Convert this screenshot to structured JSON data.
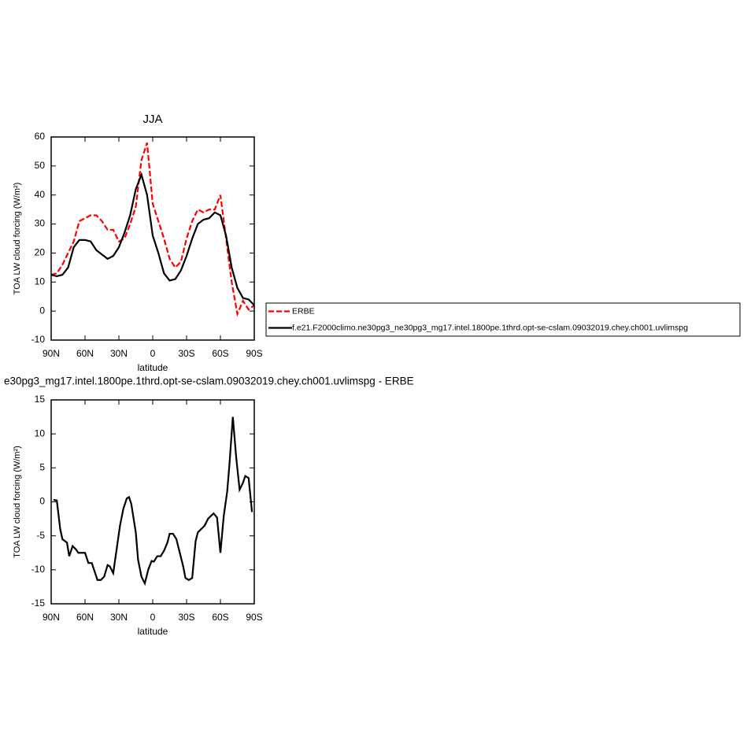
{
  "chart_data": [
    {
      "type": "line",
      "title": "JJA",
      "xlabel": "latitude",
      "ylabel": "TOA LW cloud forcing (W/m²)",
      "x": [
        90,
        85,
        80,
        75,
        70,
        65,
        60,
        55,
        50,
        45,
        40,
        35,
        30,
        25,
        20,
        15,
        10,
        5,
        0,
        -5,
        -10,
        -15,
        -20,
        -25,
        -30,
        -35,
        -40,
        -45,
        -50,
        -55,
        -60,
        -65,
        -70,
        -75,
        -80,
        -85,
        -90
      ],
      "series": [
        {
          "name": "ERBE",
          "color": "#ff0000",
          "linestyle": "dashed",
          "values": [
            12.5,
            13,
            16,
            20,
            24,
            31,
            32,
            33,
            33,
            31,
            28,
            28,
            24,
            25,
            30,
            36,
            52,
            58,
            37,
            31,
            25,
            18,
            15,
            17,
            25,
            31,
            35,
            34,
            35,
            35,
            40,
            25,
            10,
            -1,
            3.5,
            0.5,
            2
          ]
        },
        {
          "name": "f.e21.F2000climo.ne30pg3_ne30pg3_mg17.intel.1800pe.1thrd.opt-se-cslam.09032019.chey.ch001.uvlimspg",
          "color": "#000000",
          "linestyle": "solid",
          "values": [
            12.5,
            12,
            12.5,
            15,
            22,
            24.5,
            24.5,
            24,
            21,
            19.5,
            18,
            19,
            22,
            27,
            33,
            42,
            47,
            40,
            26,
            20,
            13,
            10.5,
            11,
            14,
            19,
            25,
            30,
            31.5,
            32,
            34,
            33,
            26,
            15,
            8,
            4.5,
            4,
            2
          ]
        }
      ],
      "xlim": [
        90,
        -90
      ],
      "xticks": [
        {
          "value": 90,
          "label": "90N"
        },
        {
          "value": 60,
          "label": "60N"
        },
        {
          "value": 30,
          "label": "30N"
        },
        0,
        {
          "value": -30,
          "label": "30S"
        },
        {
          "value": -60,
          "label": "60S"
        },
        {
          "value": -90,
          "label": "90S"
        }
      ],
      "ylim": [
        -10,
        60
      ],
      "yticks": [
        -10,
        0,
        10,
        20,
        30,
        40,
        50,
        60
      ],
      "legend": "right"
    },
    {
      "type": "line",
      "title": "e30pg3_mg17.intel.1800pe.1thrd.opt-se-cslam.09032019.chey.ch001.uvlimspg - ERBE",
      "xlabel": "latitude",
      "ylabel": "TOA LW cloud forcing (W/m²)",
      "x": [
        88,
        85,
        82,
        80,
        76,
        74,
        71,
        68,
        66,
        60,
        57,
        54,
        52,
        49,
        46,
        43,
        40,
        38,
        35,
        32,
        29,
        26,
        23,
        21,
        19,
        15,
        13,
        10,
        7,
        4,
        1,
        -1,
        -4,
        -7,
        -10,
        -13,
        -15,
        -18,
        -21,
        -24,
        -27,
        -29,
        -32,
        -35,
        -38,
        -40,
        -43,
        -46,
        -49,
        -52,
        -54,
        -57,
        -60,
        -63,
        -66,
        -68,
        -71,
        -74,
        -77,
        -80,
        -82,
        -85,
        -88
      ],
      "values": [
        0.3,
        0.2,
        -4,
        -5.5,
        -6,
        -8,
        -6.5,
        -7,
        -7.5,
        -7.5,
        -9,
        -9,
        -10,
        -11.5,
        -11.5,
        -11,
        -9.3,
        -9.5,
        -10.5,
        -7,
        -3.5,
        -1,
        0.5,
        0.7,
        -0.3,
        -4.5,
        -8.5,
        -11,
        -12,
        -10,
        -8.7,
        -8.8,
        -8,
        -8,
        -7.2,
        -6,
        -4.7,
        -4.7,
        -5.5,
        -7.5,
        -9.5,
        -11.2,
        -11.5,
        -11.2,
        -5.8,
        -4.5,
        -4,
        -3.5,
        -2.5,
        -2,
        -1.7,
        -2.3,
        -7.5,
        -2,
        1.5,
        5.5,
        12.5,
        6.5,
        1.8,
        2.8,
        3.8,
        3.5,
        -1.5
      ],
      "color": "#000000",
      "xlim": [
        90,
        -90
      ],
      "xticks": [
        {
          "value": 90,
          "label": "90N"
        },
        {
          "value": 60,
          "label": "60N"
        },
        {
          "value": 30,
          "label": "30N"
        },
        0,
        {
          "value": -30,
          "label": "30S"
        },
        {
          "value": -60,
          "label": "60S"
        },
        {
          "value": -90,
          "label": "90S"
        }
      ],
      "ylim": [
        -15,
        15
      ],
      "yticks": [
        -15,
        -10,
        -5,
        0,
        5,
        10,
        15
      ]
    }
  ]
}
